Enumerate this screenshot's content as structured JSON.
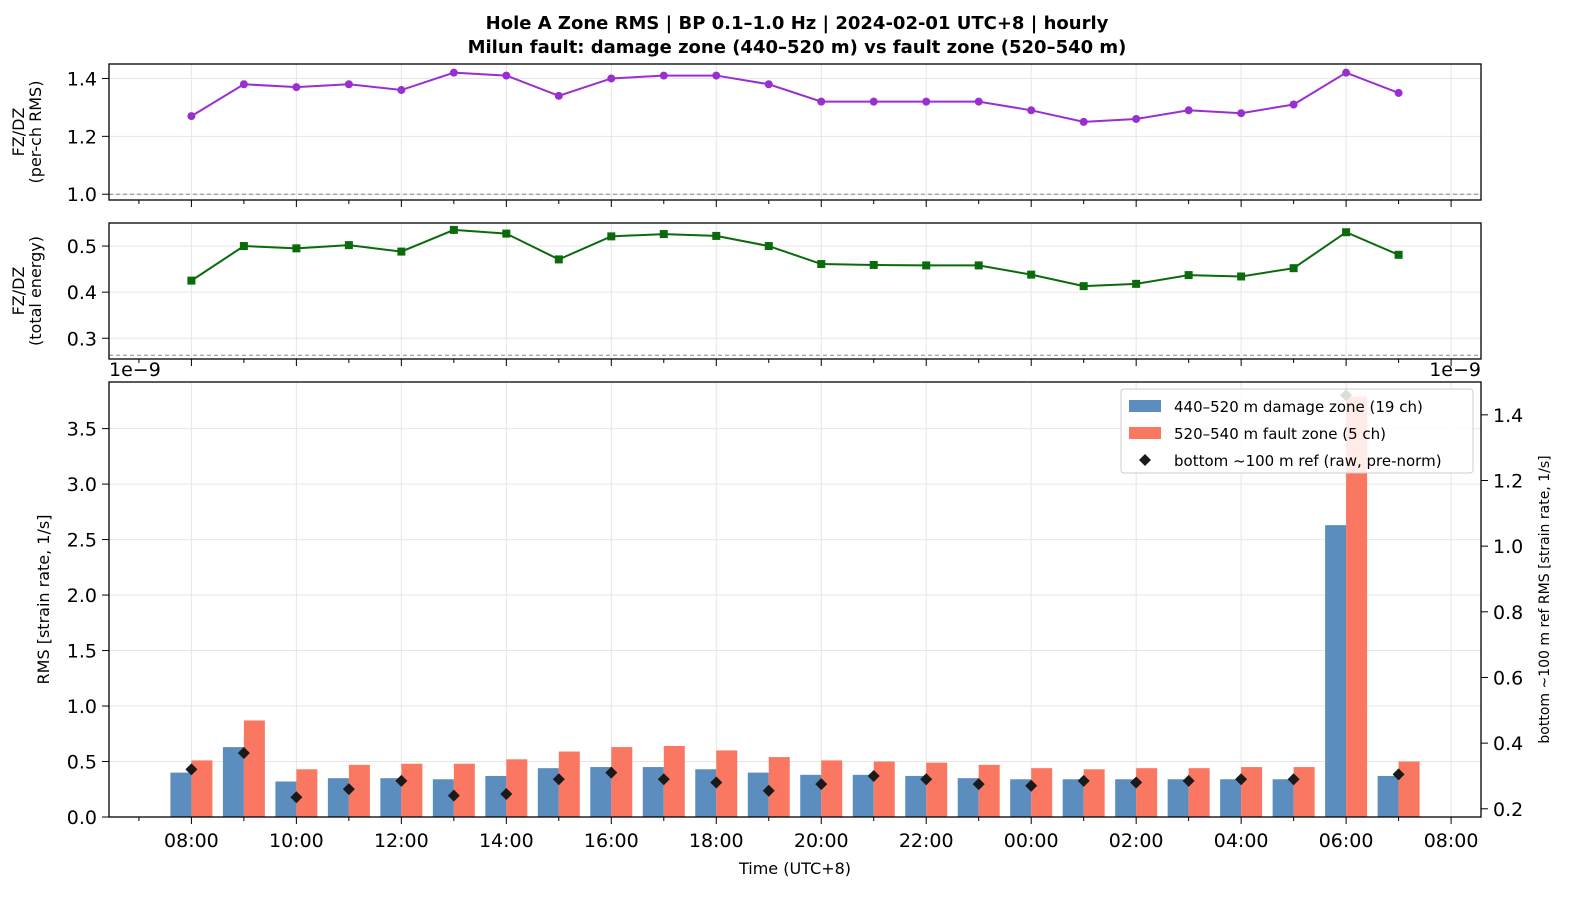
{
  "title_line1": "Hole A Zone RMS  |  BP 0.1–1.0 Hz  |  2024-02-01 UTC+8  |  hourly",
  "title_line2": "Milun fault: damage zone (440–520 m) vs fault zone (520–540 m)",
  "colors": {
    "ratio_rms": "#9a2fd0",
    "ratio_energy": "#0b6a0b",
    "damage_zone": "#5b8dbe",
    "fault_zone": "#fa7762",
    "ref": "#1a1a1a"
  },
  "chart_data": [
    {
      "type": "line",
      "ylabel": "FZ/DZ\n(per-ch RMS)",
      "ylim": [
        0.98,
        1.45
      ],
      "yticks": [
        "1.0",
        "1.2",
        "1.4"
      ],
      "ytick_values": [
        1.0,
        1.2,
        1.4
      ],
      "reference_line": 1.0,
      "grid": true,
      "x_hours": [
        0,
        1,
        2,
        3,
        4,
        5,
        6,
        7,
        8,
        9,
        10,
        11,
        12,
        13,
        14,
        15,
        16,
        17,
        18,
        19,
        20,
        21,
        22,
        23
      ],
      "values": [
        1.27,
        1.38,
        1.37,
        1.38,
        1.36,
        1.42,
        1.41,
        1.34,
        1.4,
        1.41,
        1.41,
        1.38,
        1.32,
        1.32,
        1.32,
        1.32,
        1.29,
        1.25,
        1.26,
        1.29,
        1.28,
        1.31,
        1.42,
        1.35
      ]
    },
    {
      "type": "line",
      "ylabel": "FZ/DZ\n(total energy)",
      "ylim": [
        0.255,
        0.55
      ],
      "yticks": [
        "0.3",
        "0.4",
        "0.5"
      ],
      "ytick_values": [
        0.3,
        0.4,
        0.5
      ],
      "reference_line": 0.263,
      "grid": true,
      "x_hours": [
        0,
        1,
        2,
        3,
        4,
        5,
        6,
        7,
        8,
        9,
        10,
        11,
        12,
        13,
        14,
        15,
        16,
        17,
        18,
        19,
        20,
        21,
        22,
        23
      ],
      "values": [
        0.425,
        0.5,
        0.495,
        0.502,
        0.488,
        0.535,
        0.527,
        0.471,
        0.521,
        0.526,
        0.522,
        0.5,
        0.461,
        0.459,
        0.458,
        0.458,
        0.438,
        0.413,
        0.418,
        0.437,
        0.434,
        0.452,
        0.53,
        0.481
      ]
    },
    {
      "type": "bar",
      "xlabel": "Time (UTC+8)",
      "ylabel": "RMS  [strain rate, 1/s]",
      "ylabel_right": "bottom ~100 m ref RMS  [strain rate, 1/s]",
      "offset_left": "1e−9",
      "offset_right": "1e−9",
      "ylim": [
        0,
        3.92
      ],
      "yticks": [
        "0.0",
        "0.5",
        "1.0",
        "1.5",
        "2.0",
        "2.5",
        "3.0",
        "3.5"
      ],
      "ytick_values": [
        0,
        0.5,
        1.0,
        1.5,
        2.0,
        2.5,
        3.0,
        3.5
      ],
      "ylim_right": [
        0.175,
        1.5
      ],
      "yticks_right": [
        "0.2",
        "0.4",
        "0.6",
        "0.8",
        "1.0",
        "1.2",
        "1.4"
      ],
      "ytick_values_right": [
        0.2,
        0.4,
        0.6,
        0.8,
        1.0,
        1.2,
        1.4
      ],
      "grid": true,
      "legend_position": "top-right",
      "x_tick_hours": [
        0,
        2,
        4,
        6,
        8,
        10,
        12,
        14,
        16,
        18,
        20,
        22,
        24
      ],
      "x_tick_labels": [
        "08:00",
        "10:00",
        "12:00",
        "14:00",
        "16:00",
        "18:00",
        "20:00",
        "22:00",
        "00:00",
        "02:00",
        "04:00",
        "06:00",
        "08:00"
      ],
      "x_hours": [
        0,
        1,
        2,
        3,
        4,
        5,
        6,
        7,
        8,
        9,
        10,
        11,
        12,
        13,
        14,
        15,
        16,
        17,
        18,
        19,
        20,
        21,
        22,
        23
      ],
      "series": [
        {
          "name": "440–520 m  damage zone (19 ch)",
          "kind": "bar",
          "values": [
            0.4,
            0.63,
            0.32,
            0.35,
            0.35,
            0.34,
            0.37,
            0.44,
            0.45,
            0.45,
            0.43,
            0.4,
            0.38,
            0.38,
            0.37,
            0.35,
            0.34,
            0.34,
            0.34,
            0.34,
            0.34,
            0.34,
            2.63,
            0.37
          ]
        },
        {
          "name": "520–540 m  fault zone (5 ch)",
          "kind": "bar",
          "values": [
            0.51,
            0.87,
            0.43,
            0.47,
            0.48,
            0.48,
            0.52,
            0.59,
            0.63,
            0.64,
            0.6,
            0.54,
            0.51,
            0.5,
            0.49,
            0.47,
            0.44,
            0.43,
            0.44,
            0.44,
            0.45,
            0.45,
            3.79,
            0.5
          ]
        },
        {
          "name": "bottom ~100 m ref (raw, pre-norm)",
          "kind": "marker",
          "axis": "right",
          "values": [
            0.32,
            0.37,
            0.235,
            0.26,
            0.285,
            0.24,
            0.245,
            0.29,
            0.31,
            0.29,
            0.28,
            0.255,
            0.275,
            0.3,
            0.29,
            0.275,
            0.27,
            0.285,
            0.28,
            0.285,
            0.29,
            0.29,
            1.46,
            0.305
          ]
        }
      ]
    }
  ]
}
